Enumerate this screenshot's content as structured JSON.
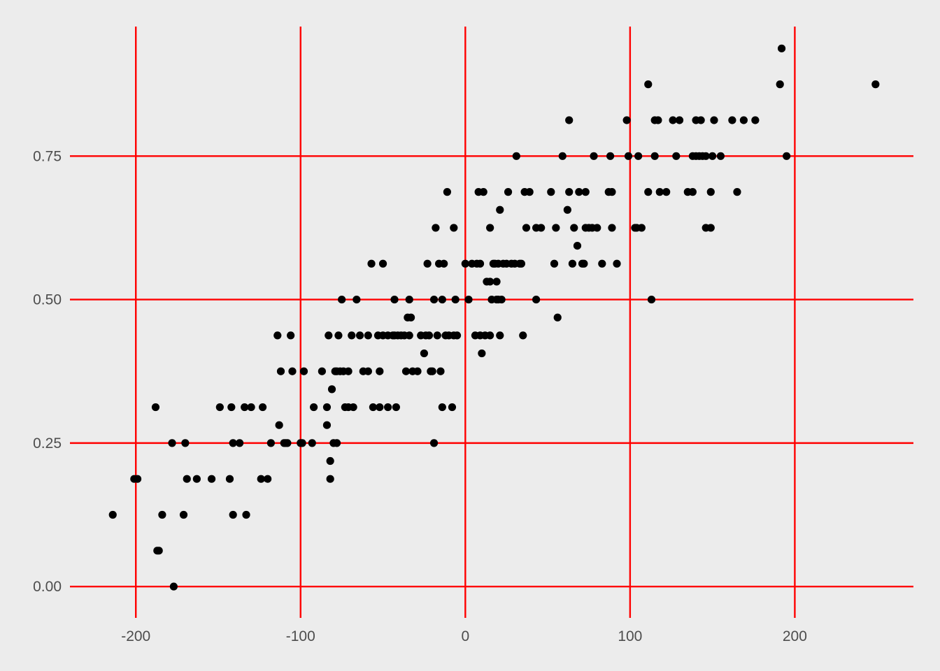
{
  "colors": {
    "background": "#ECECEC",
    "grid": "#FF0000",
    "point": "#000000",
    "tick_text": "#4D4D4D"
  },
  "chart_data": {
    "type": "scatter",
    "title": "",
    "xlabel": "",
    "ylabel": "",
    "xlim": [
      -240,
      272
    ],
    "ylim": [
      -0.04,
      1.0
    ],
    "grid": true,
    "x_ticks": [
      -200,
      -100,
      0,
      100,
      200
    ],
    "x_tick_labels": [
      "-200",
      "-100",
      "0",
      "100",
      "200"
    ],
    "y_ticks": [
      0,
      0.25,
      0.5,
      0.75
    ],
    "y_tick_labels": [
      "0.00",
      "0.25",
      "0.50",
      "0.75"
    ],
    "points": [
      [
        -214,
        0.125
      ],
      [
        -201,
        0.1875
      ],
      [
        -199,
        0.1875
      ],
      [
        -188,
        0.3125
      ],
      [
        -187,
        0.0625
      ],
      [
        -186,
        0.0625
      ],
      [
        -184,
        0.125
      ],
      [
        -178,
        0.25
      ],
      [
        -177,
        0.0
      ],
      [
        -171,
        0.125
      ],
      [
        -170,
        0.25
      ],
      [
        -169,
        0.1875
      ],
      [
        -163,
        0.1875
      ],
      [
        -154,
        0.1875
      ],
      [
        -149,
        0.3125
      ],
      [
        -143,
        0.1875
      ],
      [
        -142,
        0.3125
      ],
      [
        -141,
        0.125
      ],
      [
        -141,
        0.25
      ],
      [
        -137,
        0.25
      ],
      [
        -134,
        0.3125
      ],
      [
        -133,
        0.125
      ],
      [
        -130,
        0.3125
      ],
      [
        -124,
        0.1875
      ],
      [
        -123,
        0.3125
      ],
      [
        -120,
        0.1875
      ],
      [
        -118,
        0.25
      ],
      [
        -114,
        0.4375
      ],
      [
        -113,
        0.28125
      ],
      [
        -112,
        0.375
      ],
      [
        -110,
        0.25
      ],
      [
        -109,
        0.25
      ],
      [
        -108,
        0.25
      ],
      [
        -106,
        0.4375
      ],
      [
        -105,
        0.375
      ],
      [
        -100,
        0.25
      ],
      [
        -99,
        0.25
      ],
      [
        -98,
        0.375
      ],
      [
        -93,
        0.25
      ],
      [
        -92,
        0.3125
      ],
      [
        -87,
        0.375
      ],
      [
        -84,
        0.3125
      ],
      [
        -84,
        0.28125
      ],
      [
        -83,
        0.4375
      ],
      [
        -82,
        0.21875
      ],
      [
        -82,
        0.1875
      ],
      [
        -81,
        0.34375
      ],
      [
        -80,
        0.25
      ],
      [
        -79,
        0.375
      ],
      [
        -78,
        0.25
      ],
      [
        -78,
        0.375
      ],
      [
        -77,
        0.4375
      ],
      [
        -76,
        0.375
      ],
      [
        -75,
        0.5
      ],
      [
        -74,
        0.375
      ],
      [
        -73,
        0.3125
      ],
      [
        -71,
        0.375
      ],
      [
        -71,
        0.3125
      ],
      [
        -69,
        0.4375
      ],
      [
        -68,
        0.3125
      ],
      [
        -66,
        0.5
      ],
      [
        -64,
        0.4375
      ],
      [
        -62,
        0.375
      ],
      [
        -59,
        0.4375
      ],
      [
        -59,
        0.375
      ],
      [
        -57,
        0.5625
      ],
      [
        -56,
        0.3125
      ],
      [
        -53,
        0.4375
      ],
      [
        -52,
        0.375
      ],
      [
        -52,
        0.3125
      ],
      [
        -50,
        0.5625
      ],
      [
        -50,
        0.4375
      ],
      [
        -47,
        0.4375
      ],
      [
        -47,
        0.3125
      ],
      [
        -44,
        0.4375
      ],
      [
        -43,
        0.5
      ],
      [
        -43,
        0.4375
      ],
      [
        -42,
        0.3125
      ],
      [
        -41,
        0.4375
      ],
      [
        -39,
        0.4375
      ],
      [
        -37,
        0.4375
      ],
      [
        -36,
        0.375
      ],
      [
        -35,
        0.46875
      ],
      [
        -34,
        0.4375
      ],
      [
        -34,
        0.5
      ],
      [
        -33,
        0.46875
      ],
      [
        -32,
        0.375
      ],
      [
        -29,
        0.375
      ],
      [
        -27,
        0.4375
      ],
      [
        -25,
        0.40625
      ],
      [
        -24,
        0.4375
      ],
      [
        -23,
        0.5625
      ],
      [
        -22,
        0.4375
      ],
      [
        -21,
        0.375
      ],
      [
        -20,
        0.375
      ],
      [
        -19,
        0.25
      ],
      [
        -19,
        0.5
      ],
      [
        -18,
        0.625
      ],
      [
        -17,
        0.4375
      ],
      [
        -16,
        0.5625
      ],
      [
        -15,
        0.375
      ],
      [
        -14,
        0.5
      ],
      [
        -14,
        0.3125
      ],
      [
        -13,
        0.5625
      ],
      [
        -12,
        0.4375
      ],
      [
        -11,
        0.6875
      ],
      [
        -10,
        0.4375
      ],
      [
        -8,
        0.3125
      ],
      [
        -7,
        0.625
      ],
      [
        -7,
        0.4375
      ],
      [
        -6,
        0.5
      ],
      [
        -5,
        0.4375
      ],
      [
        0,
        0.5625
      ],
      [
        2,
        0.5
      ],
      [
        4,
        0.5625
      ],
      [
        6,
        0.4375
      ],
      [
        7,
        0.5625
      ],
      [
        8,
        0.6875
      ],
      [
        9,
        0.5625
      ],
      [
        9,
        0.4375
      ],
      [
        10,
        0.40625
      ],
      [
        11,
        0.6875
      ],
      [
        12,
        0.4375
      ],
      [
        13,
        0.53125
      ],
      [
        15,
        0.53125
      ],
      [
        15,
        0.4375
      ],
      [
        15,
        0.625
      ],
      [
        16,
        0.5
      ],
      [
        17,
        0.5625
      ],
      [
        18,
        0.5625
      ],
      [
        19,
        0.5
      ],
      [
        19,
        0.53125
      ],
      [
        20,
        0.5
      ],
      [
        20,
        0.5625
      ],
      [
        21,
        0.65625
      ],
      [
        21,
        0.4375
      ],
      [
        22,
        0.5
      ],
      [
        23,
        0.5625
      ],
      [
        25,
        0.5625
      ],
      [
        26,
        0.6875
      ],
      [
        28,
        0.5625
      ],
      [
        30,
        0.5625
      ],
      [
        31,
        0.75
      ],
      [
        33,
        0.5625
      ],
      [
        34,
        0.5625
      ],
      [
        36,
        0.6875
      ],
      [
        35,
        0.4375
      ],
      [
        37,
        0.625
      ],
      [
        39,
        0.6875
      ],
      [
        43,
        0.5
      ],
      [
        43,
        0.625
      ],
      [
        46,
        0.625
      ],
      [
        52,
        0.6875
      ],
      [
        54,
        0.5625
      ],
      [
        55,
        0.625
      ],
      [
        56,
        0.46875
      ],
      [
        59,
        0.75
      ],
      [
        62,
        0.65625
      ],
      [
        63,
        0.8125
      ],
      [
        63,
        0.6875
      ],
      [
        65,
        0.5625
      ],
      [
        66,
        0.625
      ],
      [
        68,
        0.59375
      ],
      [
        69,
        0.6875
      ],
      [
        71,
        0.5625
      ],
      [
        72,
        0.5625
      ],
      [
        73,
        0.6875
      ],
      [
        73,
        0.625
      ],
      [
        75,
        0.625
      ],
      [
        77,
        0.625
      ],
      [
        78,
        0.75
      ],
      [
        80,
        0.625
      ],
      [
        83,
        0.5625
      ],
      [
        87,
        0.6875
      ],
      [
        88,
        0.75
      ],
      [
        89,
        0.625
      ],
      [
        89,
        0.6875
      ],
      [
        92,
        0.5625
      ],
      [
        98,
        0.8125
      ],
      [
        99,
        0.75
      ],
      [
        103,
        0.625
      ],
      [
        104,
        0.625
      ],
      [
        105,
        0.75
      ],
      [
        107,
        0.625
      ],
      [
        111,
        0.875
      ],
      [
        111,
        0.6875
      ],
      [
        113,
        0.5
      ],
      [
        115,
        0.75
      ],
      [
        115,
        0.8125
      ],
      [
        117,
        0.8125
      ],
      [
        118,
        0.6875
      ],
      [
        122,
        0.6875
      ],
      [
        126,
        0.8125
      ],
      [
        128,
        0.75
      ],
      [
        130,
        0.8125
      ],
      [
        135,
        0.6875
      ],
      [
        138,
        0.6875
      ],
      [
        138,
        0.75
      ],
      [
        140,
        0.75
      ],
      [
        140,
        0.8125
      ],
      [
        142,
        0.75
      ],
      [
        143,
        0.8125
      ],
      [
        144,
        0.75
      ],
      [
        146,
        0.75
      ],
      [
        146,
        0.625
      ],
      [
        149,
        0.625
      ],
      [
        149,
        0.6875
      ],
      [
        150,
        0.75
      ],
      [
        151,
        0.8125
      ],
      [
        155,
        0.75
      ],
      [
        162,
        0.8125
      ],
      [
        165,
        0.6875
      ],
      [
        169,
        0.8125
      ],
      [
        176,
        0.8125
      ],
      [
        191,
        0.875
      ],
      [
        192,
        0.9375
      ],
      [
        195,
        0.75
      ],
      [
        249,
        0.875
      ]
    ]
  }
}
